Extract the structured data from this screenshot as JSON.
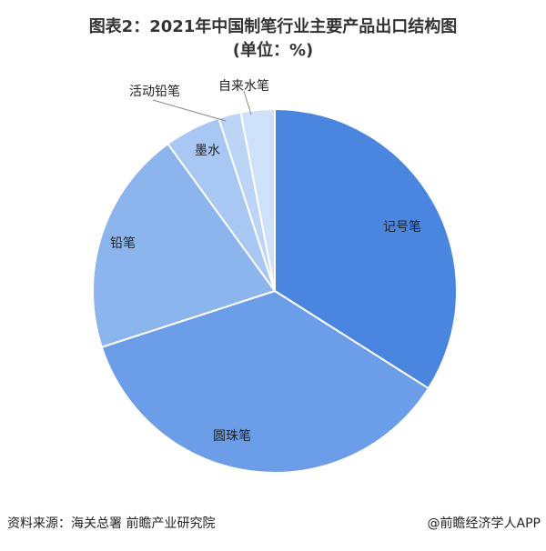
{
  "chart_data": {
    "type": "pie",
    "title": "图表2：2021年中国制笔行业主要产品出口结构图",
    "subtitle": "(单位：%)",
    "categories": [
      "记号笔",
      "圆珠笔",
      "铅笔",
      "墨水",
      "活动铅笔",
      "自来水笔"
    ],
    "values": [
      34,
      36,
      20,
      5,
      2,
      3
    ],
    "colors": [
      "#4a86df",
      "#6b9de8",
      "#8cb5ee",
      "#a8c7f2",
      "#bcd4f5",
      "#cfe0f9"
    ],
    "source": "资料来源：海关总署 前瞻产业研究院",
    "credit": "@前瞻经济学人APP"
  }
}
